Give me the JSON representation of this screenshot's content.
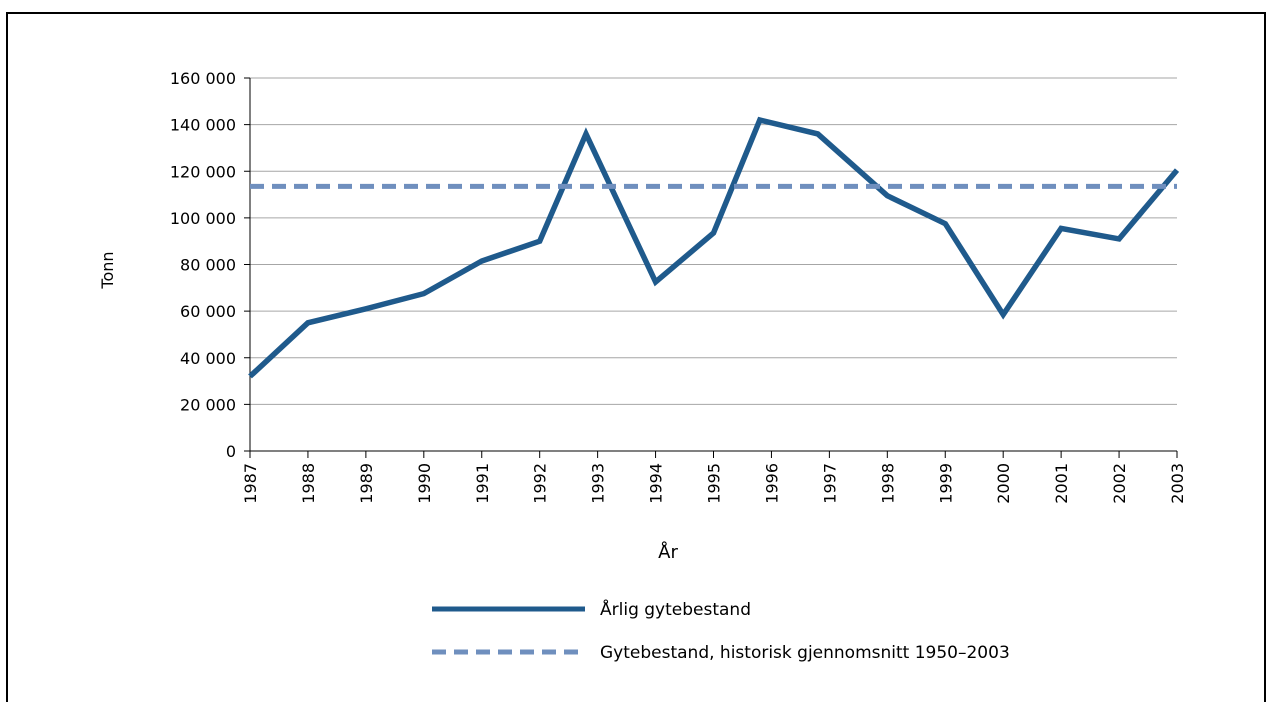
{
  "chart_data": {
    "type": "line",
    "title": "",
    "xlabel": "År",
    "ylabel": "Tonn",
    "categories": [
      "1987",
      "1988",
      "1989",
      "1990",
      "1991",
      "1992",
      "1993",
      "1994",
      "1995",
      "1996",
      "1997",
      "1998",
      "1999",
      "2000",
      "2001",
      "2002",
      "2003"
    ],
    "y_ticks": [
      0,
      20000,
      40000,
      60000,
      80000,
      100000,
      120000,
      140000,
      160000
    ],
    "y_tick_labels": [
      "0",
      "20 000",
      "40 000",
      "60 000",
      "80 000",
      "100 000",
      "120 000",
      "140 000",
      "160 000"
    ],
    "ylim": [
      0,
      160000
    ],
    "grid": true,
    "legend_position": "bottom",
    "series": [
      {
        "name": "Årlig gytebestand",
        "style": "solid",
        "color": "#1f5a8c",
        "x": [
          1987,
          1988,
          1989,
          1990,
          1991,
          1992,
          1992.8,
          1994,
          1995,
          1995.8,
          1996.8,
          1998,
          1999,
          2000,
          2001,
          2002,
          2003
        ],
        "values": [
          32000,
          55000,
          61000,
          67500,
          81500,
          90000,
          136000,
          72500,
          93500,
          142000,
          136000,
          109500,
          97500,
          58500,
          95500,
          91000,
          120500
        ]
      },
      {
        "name": "Gytebestand, historisk gjennomsnitt 1950–2003",
        "style": "dashed",
        "color": "#6f8fbe",
        "x": [
          1987,
          2003
        ],
        "values": [
          113500,
          113500
        ]
      }
    ]
  }
}
